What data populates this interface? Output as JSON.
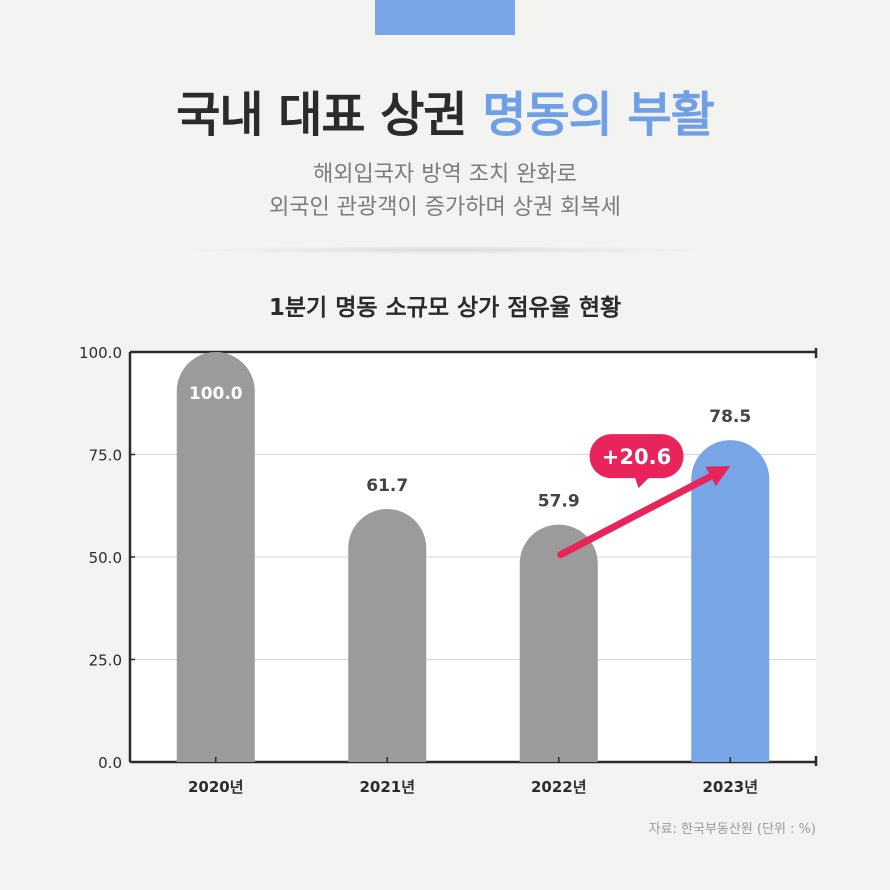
{
  "header": {
    "title_part1": "국내 대표 상권 ",
    "title_part2": "명동의 부활",
    "subtitle_line1": "해외입국자 방역 조치 완화로",
    "subtitle_line2": "외국인 관광객이 증가하며 상권 회복세"
  },
  "colors": {
    "accent": "#77a5e6",
    "bar_gray": "#9b9b9b",
    "arrow": "#e8245a",
    "text_dark": "#2b2b2b"
  },
  "chart_data": {
    "type": "bar",
    "title": "1분기 명동 소규모 상가 점유율 현황",
    "categories": [
      "2020년",
      "2021년",
      "2022년",
      "2023년"
    ],
    "values": [
      100.0,
      61.7,
      57.9,
      78.5
    ],
    "value_labels": [
      "100.0",
      "61.7",
      "57.9",
      "78.5"
    ],
    "ylim": [
      0,
      100
    ],
    "yticks": [
      "0.0",
      "25.0",
      "50.0",
      "75.0",
      "100.0"
    ],
    "grid": true,
    "highlight_index": 3,
    "annotation": {
      "text": "+20.6",
      "from_category": "2022년",
      "to_category": "2023년"
    },
    "xlabel": "",
    "ylabel": ""
  },
  "source": "자료: 한국부동산원 (단위 : %)"
}
